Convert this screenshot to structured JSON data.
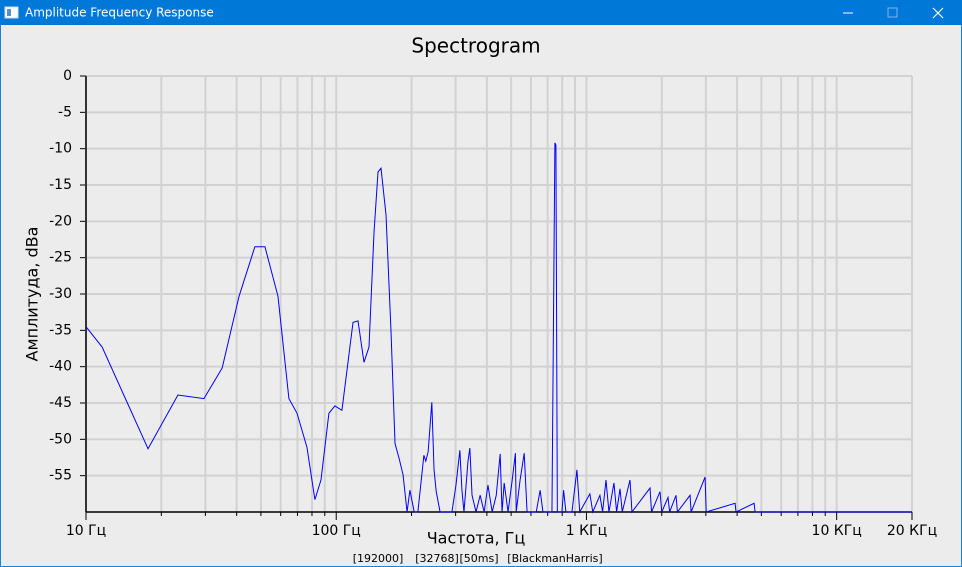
{
  "window": {
    "title": "Amplitude Frequency Response"
  },
  "chart_data": {
    "type": "line",
    "title": "Spectrogram",
    "x_label": "Частота, Гц",
    "y_label": "Амплитуда, dBa",
    "log_x": true,
    "grid": true,
    "color": "#0000ff",
    "xlim": [
      10,
      20000
    ],
    "ylim": [
      -60,
      0
    ],
    "xticks": [
      {
        "value": 10,
        "label": "10 Гц"
      },
      {
        "value": 100,
        "label": "100 Гц"
      },
      {
        "value": 1000,
        "label": "1 КГц"
      },
      {
        "value": 10000,
        "label": "10 КГц"
      },
      {
        "value": 20000,
        "label": "20 КГц"
      }
    ],
    "x_minor_grid": [
      20,
      30,
      40,
      50,
      60,
      70,
      80,
      90,
      200,
      300,
      400,
      500,
      600,
      700,
      800,
      900,
      2000,
      3000,
      4000,
      5000,
      6000,
      7000,
      8000,
      9000
    ],
    "yticks": [
      0,
      -5,
      -10,
      -15,
      -20,
      -25,
      -30,
      -35,
      -40,
      -45,
      -50,
      -55
    ],
    "x": [
      10,
      11.6,
      17.7,
      23.3,
      29.6,
      35,
      40.9,
      47.3,
      51.9,
      58.5,
      64.7,
      69.7,
      76.4,
      82.2,
      86.9,
      93.5,
      98.8,
      105.4,
      116.7,
      122.2,
      129.1,
      135.2,
      141.6,
      146.9,
      151,
      158.1,
      165.5,
      171.8,
      178.3,
      185,
      191.9,
      197,
      205,
      212,
      224,
      228,
      233,
      241,
      246,
      251,
      260,
      290,
      301,
      312,
      318,
      324,
      336,
      342,
      349,
      362,
      376,
      390,
      404,
      420,
      436,
      452,
      460,
      469,
      486,
      505,
      520,
      524,
      543,
      564,
      579,
      630,
      653,
      670,
      728,
      748,
      755,
      765,
      798,
      810,
      828,
      875,
      916,
      940,
      1032,
      1060,
      1132,
      1160,
      1197,
      1230,
      1288,
      1320,
      1362,
      1390,
      1493,
      1520,
      1795,
      1820,
      1968,
      2000,
      2118,
      2150,
      2280,
      2310,
      2594,
      2620,
      2979,
      3010,
      3926,
      3960,
      4677,
      4720,
      20000
    ],
    "values": [
      -34.5,
      -37.3,
      -51.3,
      -43.9,
      -44.4,
      -40.2,
      -30.3,
      -23.5,
      -23.5,
      -30.3,
      -44.4,
      -46.4,
      -51.1,
      -58.3,
      -55.6,
      -46.4,
      -45.4,
      -46,
      -33.9,
      -33.7,
      -39.4,
      -37.3,
      -21.5,
      -13.2,
      -12.7,
      -19.1,
      -35,
      -50.6,
      -52.6,
      -54.9,
      -60,
      -57,
      -60,
      -60,
      -52.2,
      -53,
      -51.7,
      -44.9,
      -54.2,
      -57.2,
      -60,
      -60,
      -56.3,
      -51.5,
      -57,
      -60,
      -53.1,
      -51.2,
      -57.7,
      -60,
      -57.7,
      -60,
      -56.3,
      -60,
      -57.7,
      -52,
      -60,
      -56,
      -60,
      -55.6,
      -51.9,
      -60,
      -55.6,
      -51.9,
      -60,
      -60,
      -57,
      -60,
      -60,
      -9.2,
      -9.5,
      -60,
      -60,
      -57,
      -60,
      -60,
      -54.2,
      -60,
      -57.5,
      -60,
      -57.7,
      -60,
      -55.6,
      -60,
      -56,
      -60,
      -56.8,
      -60,
      -55.6,
      -60,
      -56.7,
      -60,
      -57.2,
      -60,
      -58,
      -60,
      -57.7,
      -60,
      -57.7,
      -60,
      -55.2,
      -60,
      -58.8,
      -60,
      -58.8,
      -60,
      -60
    ]
  },
  "footer": [
    "[192000]",
    "[32768]",
    "[50ms]",
    "[BlackmanHarris]"
  ]
}
